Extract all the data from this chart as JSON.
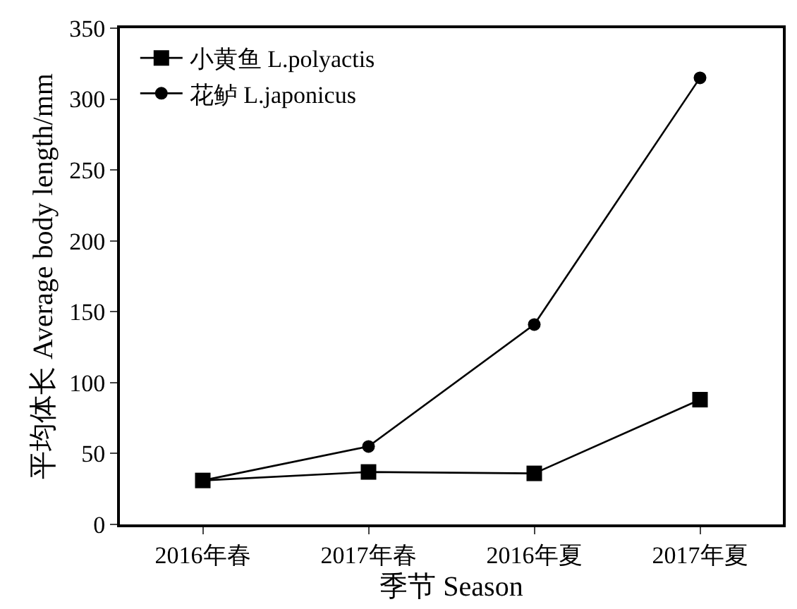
{
  "chart_data": {
    "type": "line",
    "xlabel": "季节 Season",
    "ylabel": "平均体长 Average body length/mm",
    "categories": [
      "2016年春",
      "2017年春",
      "2016年夏",
      "2017年夏"
    ],
    "series": [
      {
        "name": "小黄鱼 L.polyactis",
        "color": "#000000",
        "marker": "square",
        "values": [
          31,
          37,
          36,
          88
        ]
      },
      {
        "name": "花鲈 L.japonicus",
        "color": "#000000",
        "marker": "circle",
        "values": [
          31,
          55,
          141,
          315
        ]
      }
    ],
    "ylim": [
      0,
      350
    ],
    "yticks": [
      0,
      50,
      100,
      150,
      200,
      250,
      300,
      350
    ],
    "grid": false,
    "legend": "top left",
    "line_style": "solid"
  }
}
